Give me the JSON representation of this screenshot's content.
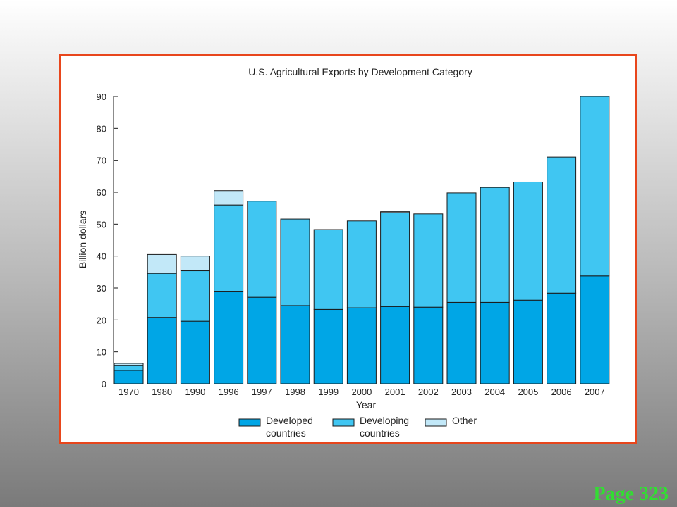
{
  "page_label": "Page 323",
  "colors": {
    "frame_border": "#e8461c",
    "developed": "#00a6e6",
    "developing": "#40c6f2",
    "other": "#c2e8f8",
    "bar_outline": "#1a1a1a",
    "page_label": "#33dd33"
  },
  "chart_data": {
    "type": "bar",
    "stacked": true,
    "title": "U.S. Agricultural Exports by Development Category",
    "xlabel": "Year",
    "ylabel": "Billion dollars",
    "ylim": [
      0,
      90
    ],
    "yticks": [
      0,
      10,
      20,
      30,
      40,
      50,
      60,
      70,
      80,
      90
    ],
    "grid": false,
    "legend_position": "bottom",
    "categories": [
      "1970",
      "1980",
      "1990",
      "1996",
      "1997",
      "1998",
      "1999",
      "2000",
      "2001",
      "2002",
      "2003",
      "2004",
      "2005",
      "2006",
      "2007"
    ],
    "series": [
      {
        "name": "Developed countries",
        "legend_lines": [
          "Developed",
          "countries"
        ],
        "color": "#00a6e6",
        "values": [
          4.2,
          20.8,
          19.6,
          29.0,
          27.1,
          24.5,
          23.3,
          23.8,
          24.2,
          24.0,
          25.5,
          25.5,
          26.2,
          28.4,
          33.8
        ]
      },
      {
        "name": "Developing countries",
        "legend_lines": [
          "Developing",
          "countries"
        ],
        "color": "#40c6f2",
        "values": [
          1.5,
          13.8,
          15.8,
          27.0,
          30.1,
          27.1,
          25.0,
          27.2,
          29.4,
          29.2,
          34.3,
          36.0,
          37.0,
          42.6,
          56.2
        ]
      },
      {
        "name": "Other",
        "legend_lines": [
          "Other"
        ],
        "color": "#c2e8f8",
        "values": [
          0.7,
          5.9,
          4.6,
          4.5,
          0,
          0,
          0,
          0,
          0.3,
          0,
          0,
          0,
          0,
          0,
          0
        ]
      }
    ]
  }
}
